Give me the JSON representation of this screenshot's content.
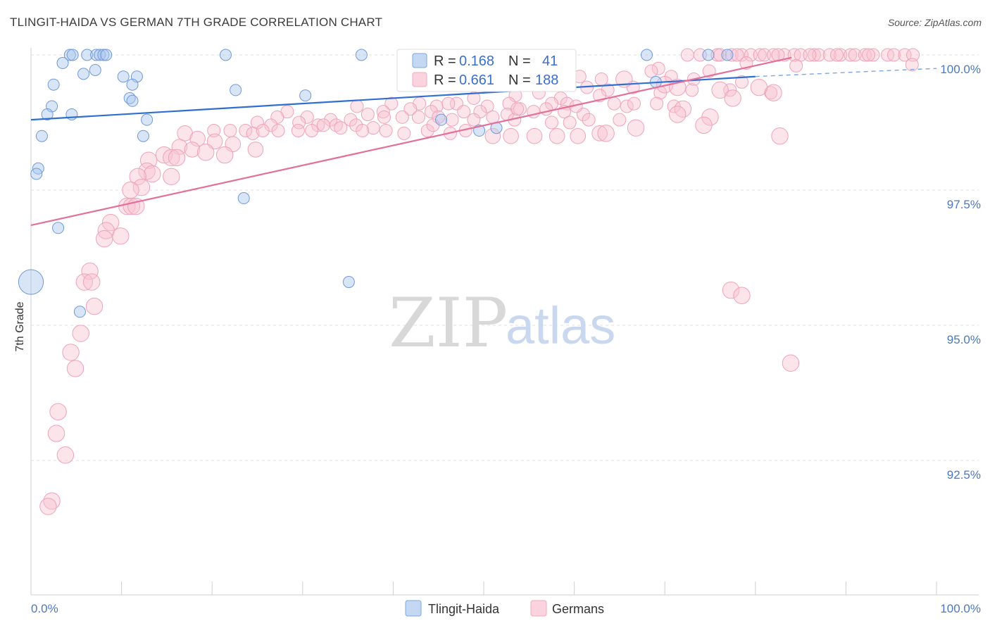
{
  "header": {
    "title": "TLINGIT-HAIDA VS GERMAN 7TH GRADE CORRELATION CHART",
    "source": "Source: ZipAtlas.com"
  },
  "watermark": {
    "zip": "ZIP",
    "atlas": "atlas"
  },
  "colors": {
    "blue": "#7ba7e0",
    "blue_line": "#2f6fcf",
    "pink": "#f3a9c0",
    "pink_line": "#e2709a",
    "accent_text": "#4a78c2"
  },
  "legend_box": {
    "rows": [
      {
        "r_label": "R = ",
        "r_value": "0.168",
        "n_label": "N = ",
        "n_value": "41"
      },
      {
        "r_label": "R = ",
        "r_value": "0.661",
        "n_label": "N = ",
        "n_value": "188"
      }
    ]
  },
  "bottom_legend": {
    "items": [
      "Tlingit-Haida",
      "Germans"
    ]
  },
  "chart_data": {
    "type": "scatter",
    "title": "TLINGIT-HAIDA VS GERMAN 7TH GRADE CORRELATION CHART",
    "xlabel": "",
    "ylabel": "7th Grade",
    "xlim": [
      0,
      100
    ],
    "ylim": [
      90.5,
      100.3
    ],
    "x_tick_labels": [
      "0.0%",
      "100.0%"
    ],
    "y_ticks": [
      {
        "value": 100.0,
        "label": "100.0%"
      },
      {
        "value": 97.5,
        "label": "97.5%"
      },
      {
        "value": 95.0,
        "label": "95.0%"
      },
      {
        "value": 92.5,
        "label": "92.5%"
      }
    ],
    "series": [
      {
        "name": "Tlingit-Haida",
        "color": "#7ba7e0",
        "R": 0.168,
        "N": 41,
        "trend": {
          "x": [
            0,
            80
          ],
          "y": [
            98.8,
            99.6
          ],
          "dashed_to": [
            100,
            99.75
          ]
        },
        "points": [
          [
            4.3,
            100
          ],
          [
            4.6,
            100
          ],
          [
            6.2,
            100
          ],
          [
            7.2,
            100
          ],
          [
            7.6,
            100
          ],
          [
            8.0,
            100
          ],
          [
            8.3,
            100
          ],
          [
            21.5,
            100
          ],
          [
            36.5,
            100
          ],
          [
            68.0,
            100
          ],
          [
            74.8,
            100
          ],
          [
            76.9,
            100
          ],
          [
            3.5,
            99.85
          ],
          [
            7.1,
            99.72
          ],
          [
            5.8,
            99.65
          ],
          [
            10.2,
            99.6
          ],
          [
            11.7,
            99.6
          ],
          [
            2.5,
            99.45
          ],
          [
            11.2,
            99.45
          ],
          [
            22.6,
            99.35
          ],
          [
            30.3,
            99.25
          ],
          [
            10.9,
            99.2
          ],
          [
            11.2,
            99.15
          ],
          [
            2.3,
            99.05
          ],
          [
            4.5,
            98.9
          ],
          [
            1.8,
            98.9
          ],
          [
            12.8,
            98.8
          ],
          [
            45.3,
            98.8
          ],
          [
            51.4,
            98.65
          ],
          [
            49.5,
            98.6
          ],
          [
            1.2,
            98.5
          ],
          [
            12.4,
            98.5
          ],
          [
            0.8,
            97.9
          ],
          [
            0.6,
            97.8
          ],
          [
            23.5,
            97.35
          ],
          [
            3.0,
            96.8
          ],
          [
            0.0,
            95.8
          ],
          [
            35.1,
            95.8
          ],
          [
            5.4,
            95.25
          ],
          [
            69.0,
            99.5
          ]
        ],
        "sizes": [
          1,
          1,
          1,
          1,
          1,
          1,
          1,
          1,
          1,
          1,
          1,
          1,
          1,
          1,
          1,
          1,
          1,
          1,
          1,
          1,
          1,
          1,
          1,
          1,
          1,
          1,
          1,
          1,
          1,
          1,
          1,
          1,
          1,
          1,
          1,
          1,
          2.2,
          1,
          1,
          1
        ]
      },
      {
        "name": "Germans",
        "color": "#f3a9c0",
        "R": 0.661,
        "N": 188,
        "trend": {
          "x": [
            0,
            84
          ],
          "y": [
            96.85,
            99.95
          ]
        },
        "points": [
          [
            72.5,
            100
          ],
          [
            73.9,
            100
          ],
          [
            75.8,
            100
          ],
          [
            76.1,
            100
          ],
          [
            77.4,
            100
          ],
          [
            78.5,
            100
          ],
          [
            79.5,
            100
          ],
          [
            80.5,
            100
          ],
          [
            81.0,
            100
          ],
          [
            82.0,
            100
          ],
          [
            83.2,
            100
          ],
          [
            84.3,
            100
          ],
          [
            85.0,
            100
          ],
          [
            86.5,
            100
          ],
          [
            87.0,
            100
          ],
          [
            88.2,
            100
          ],
          [
            89.4,
            100
          ],
          [
            90.5,
            100
          ],
          [
            91.0,
            100
          ],
          [
            92.1,
            100
          ],
          [
            93.0,
            100
          ],
          [
            94.6,
            100
          ],
          [
            95.3,
            100
          ],
          [
            96.5,
            100
          ],
          [
            78.0,
            100
          ],
          [
            82.5,
            100
          ],
          [
            86.0,
            100
          ],
          [
            89.0,
            100
          ],
          [
            92.5,
            100
          ],
          [
            97.4,
            100
          ],
          [
            79.0,
            99.85
          ],
          [
            97.3,
            99.82
          ],
          [
            69.3,
            99.75
          ],
          [
            74.9,
            99.7
          ],
          [
            84.5,
            99.8
          ],
          [
            68.5,
            99.7
          ],
          [
            56.6,
            99.55
          ],
          [
            60.6,
            99.6
          ],
          [
            63.0,
            99.55
          ],
          [
            70.7,
            99.6
          ],
          [
            73.2,
            99.55
          ],
          [
            78.5,
            99.5
          ],
          [
            66.5,
            99.4
          ],
          [
            61.4,
            99.4
          ],
          [
            63.7,
            99.35
          ],
          [
            56.1,
            99.3
          ],
          [
            69.5,
            99.3
          ],
          [
            73.0,
            99.35
          ],
          [
            77.2,
            99.35
          ],
          [
            81.7,
            99.3
          ],
          [
            53.5,
            99.25
          ],
          [
            48.9,
            99.2
          ],
          [
            58.5,
            99.2
          ],
          [
            62.8,
            99.25
          ],
          [
            47.0,
            99.1
          ],
          [
            52.8,
            99.1
          ],
          [
            57.5,
            99.1
          ],
          [
            59.2,
            99.1
          ],
          [
            64.4,
            99.1
          ],
          [
            65.8,
            99.05
          ],
          [
            66.6,
            99.1
          ],
          [
            69.1,
            99.1
          ],
          [
            71.0,
            99.05
          ],
          [
            42.9,
            99.1
          ],
          [
            44.8,
            99.05
          ],
          [
            46.1,
            99.1
          ],
          [
            50.4,
            99.05
          ],
          [
            36.0,
            99.05
          ],
          [
            39.8,
            99.1
          ],
          [
            49.6,
            98.95
          ],
          [
            54.0,
            99.0
          ],
          [
            56.9,
            99.0
          ],
          [
            58.9,
            98.95
          ],
          [
            61.0,
            98.9
          ],
          [
            41.9,
            99.0
          ],
          [
            44.2,
            98.95
          ],
          [
            47.8,
            98.95
          ],
          [
            52.6,
            98.9
          ],
          [
            55.5,
            98.95
          ],
          [
            37.2,
            98.9
          ],
          [
            38.9,
            98.95
          ],
          [
            28.3,
            98.95
          ],
          [
            30.5,
            98.85
          ],
          [
            33.1,
            98.8
          ],
          [
            35.3,
            98.8
          ],
          [
            39.0,
            98.85
          ],
          [
            41.0,
            98.85
          ],
          [
            42.8,
            98.85
          ],
          [
            45.0,
            98.85
          ],
          [
            46.5,
            98.8
          ],
          [
            48.9,
            98.8
          ],
          [
            51.0,
            98.85
          ],
          [
            53.4,
            98.8
          ],
          [
            57.5,
            98.75
          ],
          [
            59.5,
            98.75
          ],
          [
            61.6,
            98.8
          ],
          [
            65.0,
            98.8
          ],
          [
            27.2,
            98.85
          ],
          [
            29.6,
            98.75
          ],
          [
            31.7,
            98.7
          ],
          [
            33.7,
            98.7
          ],
          [
            35.9,
            98.7
          ],
          [
            37.8,
            98.65
          ],
          [
            25.0,
            98.75
          ],
          [
            26.5,
            98.7
          ],
          [
            23.7,
            98.6
          ],
          [
            24.5,
            98.55
          ],
          [
            22.0,
            98.6
          ],
          [
            20.2,
            98.6
          ],
          [
            25.6,
            98.6
          ],
          [
            27.3,
            98.6
          ],
          [
            29.5,
            98.6
          ],
          [
            31.0,
            98.6
          ],
          [
            32.3,
            98.7
          ],
          [
            34.2,
            98.65
          ],
          [
            36.6,
            98.6
          ],
          [
            39.2,
            98.6
          ],
          [
            41.2,
            98.55
          ],
          [
            43.8,
            98.6
          ],
          [
            46.3,
            98.55
          ],
          [
            48.0,
            98.6
          ],
          [
            51.0,
            98.5
          ],
          [
            53.0,
            98.5
          ],
          [
            55.6,
            98.5
          ],
          [
            58.1,
            98.5
          ],
          [
            60.4,
            98.5
          ],
          [
            62.8,
            98.55
          ],
          [
            17.0,
            98.55
          ],
          [
            18.4,
            98.45
          ],
          [
            20.3,
            98.4
          ],
          [
            22.3,
            98.35
          ],
          [
            24.8,
            98.25
          ],
          [
            16.4,
            98.3
          ],
          [
            17.8,
            98.25
          ],
          [
            19.3,
            98.2
          ],
          [
            21.4,
            98.15
          ],
          [
            14.7,
            98.15
          ],
          [
            15.5,
            98.1
          ],
          [
            16.1,
            98.1
          ],
          [
            13.0,
            98.05
          ],
          [
            12.8,
            97.85
          ],
          [
            13.4,
            97.8
          ],
          [
            11.8,
            97.75
          ],
          [
            15.5,
            97.75
          ],
          [
            12.2,
            97.55
          ],
          [
            11.0,
            97.5
          ],
          [
            10.6,
            97.2
          ],
          [
            11.1,
            97.2
          ],
          [
            11.6,
            97.2
          ],
          [
            8.8,
            96.9
          ],
          [
            8.3,
            96.75
          ],
          [
            9.9,
            96.65
          ],
          [
            8.1,
            96.6
          ],
          [
            6.5,
            96.0
          ],
          [
            5.9,
            95.8
          ],
          [
            6.7,
            95.8
          ],
          [
            7.0,
            95.35
          ],
          [
            5.5,
            94.85
          ],
          [
            4.4,
            94.5
          ],
          [
            4.9,
            94.2
          ],
          [
            3.0,
            93.4
          ],
          [
            2.8,
            93.0
          ],
          [
            3.8,
            92.6
          ],
          [
            2.3,
            91.75
          ],
          [
            1.9,
            91.65
          ],
          [
            72.0,
            99.0
          ],
          [
            71.4,
            98.9
          ],
          [
            75.0,
            98.85
          ],
          [
            74.3,
            98.7
          ],
          [
            66.8,
            98.65
          ],
          [
            63.5,
            98.55
          ],
          [
            82.0,
            99.3
          ],
          [
            82.7,
            98.5
          ],
          [
            65.5,
            99.55
          ],
          [
            70.0,
            99.45
          ],
          [
            71.4,
            99.4
          ],
          [
            76.1,
            99.35
          ],
          [
            77.5,
            99.2
          ],
          [
            77.3,
            95.65
          ],
          [
            78.5,
            95.55
          ],
          [
            83.9,
            94.3
          ],
          [
            80.4,
            99.4
          ],
          [
            60.2,
            99.05
          ],
          [
            53.7,
            99.0
          ],
          [
            44.4,
            98.7
          ]
        ],
        "sizes": [
          1,
          1,
          1,
          1,
          1,
          1,
          1,
          1,
          1,
          1,
          1,
          1,
          1,
          1,
          1,
          1,
          1,
          1,
          1,
          1,
          1,
          1,
          1,
          1,
          1,
          1,
          1,
          1,
          1,
          1,
          1,
          1,
          1,
          1,
          1,
          1,
          1,
          1,
          1,
          1,
          1,
          1,
          1,
          1,
          1,
          1,
          1,
          1,
          1,
          1,
          1,
          1,
          1,
          1,
          1,
          1,
          1,
          1,
          1,
          1,
          1,
          1,
          1,
          1,
          1,
          1,
          1,
          1,
          1,
          1,
          1,
          1,
          1,
          1,
          1,
          1,
          1,
          1,
          1,
          1,
          1,
          1,
          1,
          1,
          1,
          1,
          1,
          1,
          1,
          1,
          1,
          1,
          1,
          1,
          1,
          1,
          1,
          1,
          1,
          1,
          1,
          1,
          1,
          1,
          1,
          1,
          1,
          1,
          1,
          1,
          1,
          1,
          1,
          1,
          1,
          1,
          1,
          1,
          1,
          1,
          1,
          1.2,
          1.2,
          1.2,
          1.2,
          1.2,
          1.2,
          1.2,
          1.2,
          1.2,
          1.2,
          1.2,
          1.2,
          1.2,
          1.3,
          1.3,
          1.3,
          1.3,
          1.3,
          1.3,
          1.3,
          1.3,
          1.3,
          1.3,
          1.3,
          1.3,
          1.3,
          1.3,
          1.3,
          1.3,
          1.3,
          1.3,
          1.3,
          1.3,
          1.3,
          1.3,
          1.3,
          1.3,
          1.3,
          1.3,
          1.3,
          1.3,
          1.3,
          1.3,
          1.3,
          1.3,
          1.3,
          1.3,
          1.3,
          1.3,
          1.3,
          1.3,
          1.3,
          1.3,
          1.3,
          1.3,
          1.3,
          1.3,
          1.3,
          1.3,
          1.3,
          1.3
        ]
      }
    ]
  }
}
